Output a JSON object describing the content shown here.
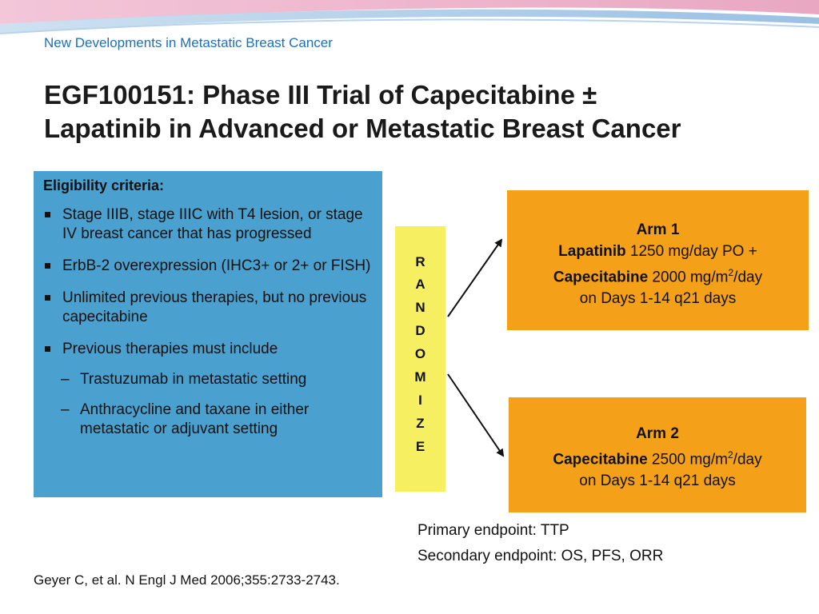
{
  "header": {
    "subtitle": "New Developments in Metastatic Breast Cancer",
    "title_line1": "EGF100151: Phase III Trial of Capecitabine ±",
    "title_line2": "Lapatinib in Advanced or Metastatic Breast Cancer"
  },
  "eligibility": {
    "heading": "Eligibility criteria:",
    "items": [
      "Stage IIIB, stage IIIC with T4 lesion, or stage IV breast cancer that has progressed",
      "ErbB-2 overexpression (IHC3+ or 2+ or FISH)",
      "Unlimited previous therapies, but no previous capecitabine",
      "Previous therapies must include"
    ],
    "subitems": [
      "Trastuzumab in metastatic setting",
      "Anthracycline and taxane in either metastatic or adjuvant setting"
    ]
  },
  "randomize": {
    "letters": [
      "R",
      "A",
      "N",
      "D",
      "O",
      "M",
      "I",
      "Z",
      "E"
    ]
  },
  "arm1": {
    "title": "Arm 1",
    "drug1": "Lapatinib",
    "dose1": " 1250 mg/day PO +",
    "drug2": "Capecitabine",
    "dose2": " 2000 mg/m",
    "sup": "2",
    "dose2_tail": "/day",
    "schedule": "on Days 1-14 q21 days"
  },
  "arm2": {
    "title": "Arm 2",
    "drug1": "Capecitabine",
    "dose1": " 2500 mg/m",
    "sup": "2",
    "dose1_tail": "/day",
    "schedule": "on Days 1-14 q21 days"
  },
  "endpoints": {
    "primary": "Primary endpoint: TTP",
    "secondary": "Secondary endpoint: OS, PFS, ORR"
  },
  "citation": "Geyer C, et al. N Engl J Med 2006;355:2733-2743.",
  "colors": {
    "eligibility_bg": "#4aa0cf",
    "randomize_bg": "#f7ef62",
    "arm_bg": "#f4a018",
    "subtitle": "#1e6fb6"
  }
}
